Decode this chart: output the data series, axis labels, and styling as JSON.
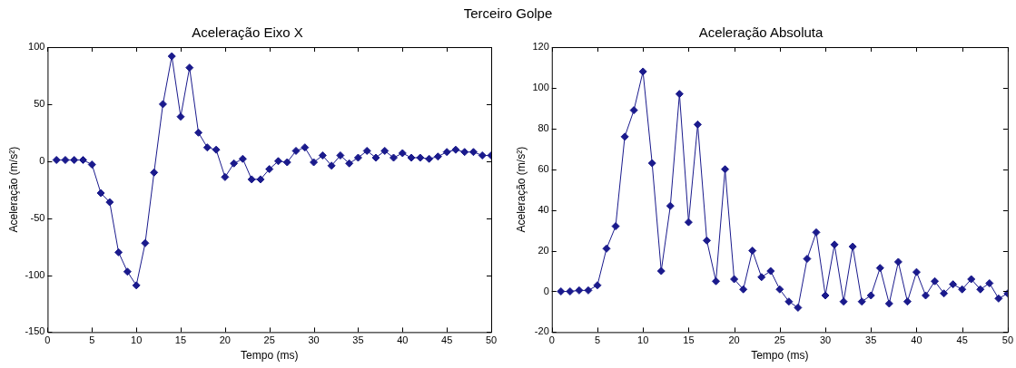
{
  "chart_data": [
    {
      "type": "line",
      "title": "Aceleração Eixo X",
      "xlabel": "Tempo (ms)",
      "ylabel": "Aceleração (m/s²)",
      "annotations": [
        "Terceiro Golpe"
      ],
      "x": [
        1,
        2,
        3,
        4,
        5,
        6,
        7,
        8,
        9,
        10,
        11,
        12,
        13,
        14,
        15,
        16,
        17,
        18,
        19,
        20,
        21,
        22,
        23,
        24,
        25,
        26,
        27,
        28,
        29,
        30,
        31,
        32,
        33,
        34,
        35,
        36,
        37,
        38,
        39,
        40,
        41,
        42,
        43,
        44,
        45,
        46,
        47,
        48,
        49,
        50
      ],
      "series": [
        {
          "color": "#1a1a8c",
          "values": [
            1,
            1,
            1,
            1,
            -3,
            -28,
            -36,
            -80,
            -97,
            -109,
            -72,
            -10,
            50,
            92,
            39,
            82,
            25,
            12,
            10,
            -14,
            -2,
            2,
            -16,
            -16,
            -7,
            0,
            -1,
            9,
            12,
            -1,
            5,
            -4,
            5,
            -2,
            3,
            9,
            3,
            9,
            3,
            7,
            3,
            3,
            2,
            4,
            8,
            10,
            8,
            8,
            5,
            5
          ]
        }
      ],
      "xlim": [
        0,
        50
      ],
      "xticks": [
        0,
        5,
        10,
        15,
        20,
        25,
        30,
        35,
        40,
        45,
        50
      ],
      "ylim": [
        -150,
        100
      ],
      "yticks": [
        -150,
        -100,
        -50,
        0,
        50,
        100
      ],
      "marker": "diamond",
      "line_style": "solid",
      "legend": false
    },
    {
      "type": "line",
      "title": "Aceleração Absoluta",
      "xlabel": "Tempo (ms)",
      "ylabel": "Aceleração (m/s²)",
      "x": [
        1,
        2,
        3,
        4,
        5,
        6,
        7,
        8,
        9,
        10,
        11,
        12,
        13,
        14,
        15,
        16,
        17,
        18,
        19,
        20,
        21,
        22,
        23,
        24,
        25,
        26,
        27,
        28,
        29,
        30,
        31,
        32,
        33,
        34,
        35,
        36,
        37,
        38,
        39,
        40,
        41,
        42,
        43,
        44,
        45,
        46,
        47,
        48,
        49,
        50
      ],
      "series": [
        {
          "color": "#1a1a8c",
          "values": [
            0,
            0,
            0.5,
            0.5,
            3,
            21,
            32,
            76,
            89,
            108,
            63,
            10,
            42,
            97,
            34,
            82,
            25,
            5,
            60,
            6,
            1,
            20,
            7,
            10,
            1,
            -5,
            -8,
            16,
            29,
            -2,
            23,
            -5,
            22,
            -5,
            -2,
            11.5,
            -6,
            14.5,
            -5,
            9.5,
            -2,
            5,
            -1,
            3.5,
            1,
            6,
            1,
            4,
            -3.5,
            -1
          ]
        }
      ],
      "xlim": [
        0,
        50
      ],
      "xticks": [
        0,
        5,
        10,
        15,
        20,
        25,
        30,
        35,
        40,
        45,
        50
      ],
      "ylim": [
        -20,
        120
      ],
      "yticks": [
        -20,
        0,
        20,
        40,
        60,
        80,
        100,
        120
      ],
      "marker": "diamond",
      "line_style": "solid",
      "legend": false
    }
  ]
}
